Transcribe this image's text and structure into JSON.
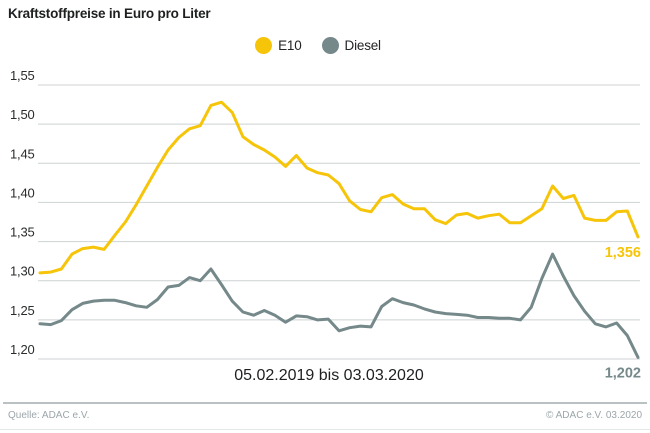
{
  "title": "Kraftstoffpreise in Euro pro Liter",
  "legend": {
    "items": [
      {
        "label": "E10",
        "color": "#F6C50A"
      },
      {
        "label": "Diesel",
        "color": "#75888A"
      }
    ]
  },
  "footer": {
    "source": "Quelle: ADAC e.V.",
    "copyright": "© ADAC e.V.  03.2020"
  },
  "colors": {
    "grid": "#cdd2d3",
    "tick_text": "#2a2c2d",
    "axis_text": "#1d1f20",
    "e10": "#F6C50A",
    "diesel": "#75888A"
  },
  "chart_data": {
    "type": "line",
    "title": "Kraftstoffpreise in Euro pro Liter",
    "x_axis_label": "05.02.2019 bis 03.03.2020",
    "ylim": [
      1.2,
      1.55
    ],
    "y_ticks": [
      "1,55",
      "1,50",
      "1,45",
      "1,40",
      "1,35",
      "1,30",
      "1,25",
      "1,20"
    ],
    "grid": true,
    "legend_position": "top-center",
    "series": [
      {
        "name": "E10",
        "color": "#F6C50A",
        "end_label": "1,356",
        "values": [
          1.31,
          1.311,
          1.315,
          1.334,
          1.341,
          1.343,
          1.34,
          1.358,
          1.375,
          1.397,
          1.421,
          1.445,
          1.467,
          1.483,
          1.494,
          1.498,
          1.524,
          1.528,
          1.515,
          1.484,
          1.474,
          1.467,
          1.458,
          1.446,
          1.46,
          1.444,
          1.438,
          1.435,
          1.424,
          1.402,
          1.391,
          1.388,
          1.406,
          1.41,
          1.398,
          1.392,
          1.392,
          1.378,
          1.373,
          1.384,
          1.386,
          1.38,
          1.383,
          1.385,
          1.374,
          1.374,
          1.383,
          1.392,
          1.421,
          1.405,
          1.409,
          1.38,
          1.377,
          1.377,
          1.388,
          1.389,
          1.356
        ]
      },
      {
        "name": "Diesel",
        "color": "#75888A",
        "end_label": "1,202",
        "values": [
          1.245,
          1.244,
          1.249,
          1.263,
          1.271,
          1.274,
          1.275,
          1.275,
          1.272,
          1.268,
          1.266,
          1.276,
          1.292,
          1.294,
          1.304,
          1.3,
          1.315,
          1.295,
          1.274,
          1.26,
          1.256,
          1.262,
          1.256,
          1.247,
          1.255,
          1.254,
          1.25,
          1.251,
          1.236,
          1.24,
          1.242,
          1.241,
          1.267,
          1.277,
          1.272,
          1.269,
          1.264,
          1.26,
          1.258,
          1.257,
          1.256,
          1.253,
          1.253,
          1.252,
          1.252,
          1.25,
          1.266,
          1.303,
          1.334,
          1.306,
          1.281,
          1.261,
          1.245,
          1.241,
          1.246,
          1.23,
          1.202
        ]
      }
    ]
  }
}
